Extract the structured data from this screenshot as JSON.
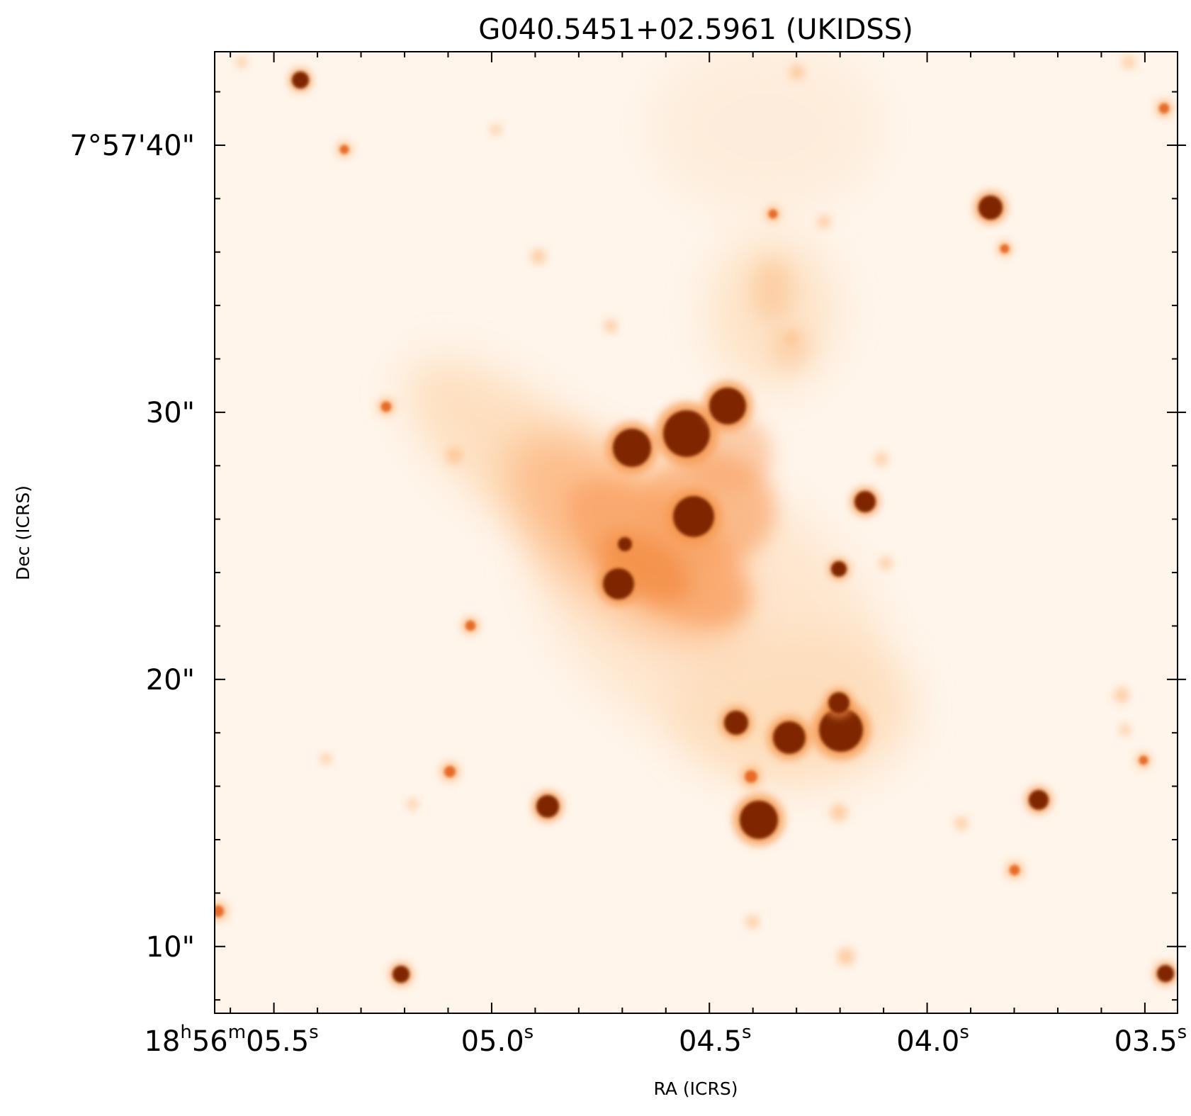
{
  "title": "G040.5451+02.5961 (UKIDSS)",
  "colormap": "Oranges",
  "colors": {
    "background": "#fff5eb",
    "mid": "#f5964a",
    "saturated": "#7f2704"
  },
  "axes": {
    "xlabel": "RA (ICRS)",
    "ylabel": "Dec (ICRS)",
    "x_ticks": [
      {
        "h": "18",
        "m": "56",
        "s": "05.5",
        "sec": 5.5
      },
      {
        "s": "05.0",
        "sec": 5.0
      },
      {
        "s": "04.5",
        "sec": 4.5
      },
      {
        "s": "04.0",
        "sec": 4.0
      },
      {
        "s": "03.5",
        "sec": 3.5
      }
    ],
    "y_ticks": [
      {
        "label": "7°57'40\"",
        "arcsec": 40
      },
      {
        "label": "30\"",
        "arcsec": 30
      },
      {
        "label": "20\"",
        "arcsec": 20
      },
      {
        "label": "10\"",
        "arcsec": 10
      }
    ],
    "x_range_sec": [
      5.636,
      3.425
    ],
    "y_range_arcsec": [
      43.5,
      7.5
    ]
  }
}
